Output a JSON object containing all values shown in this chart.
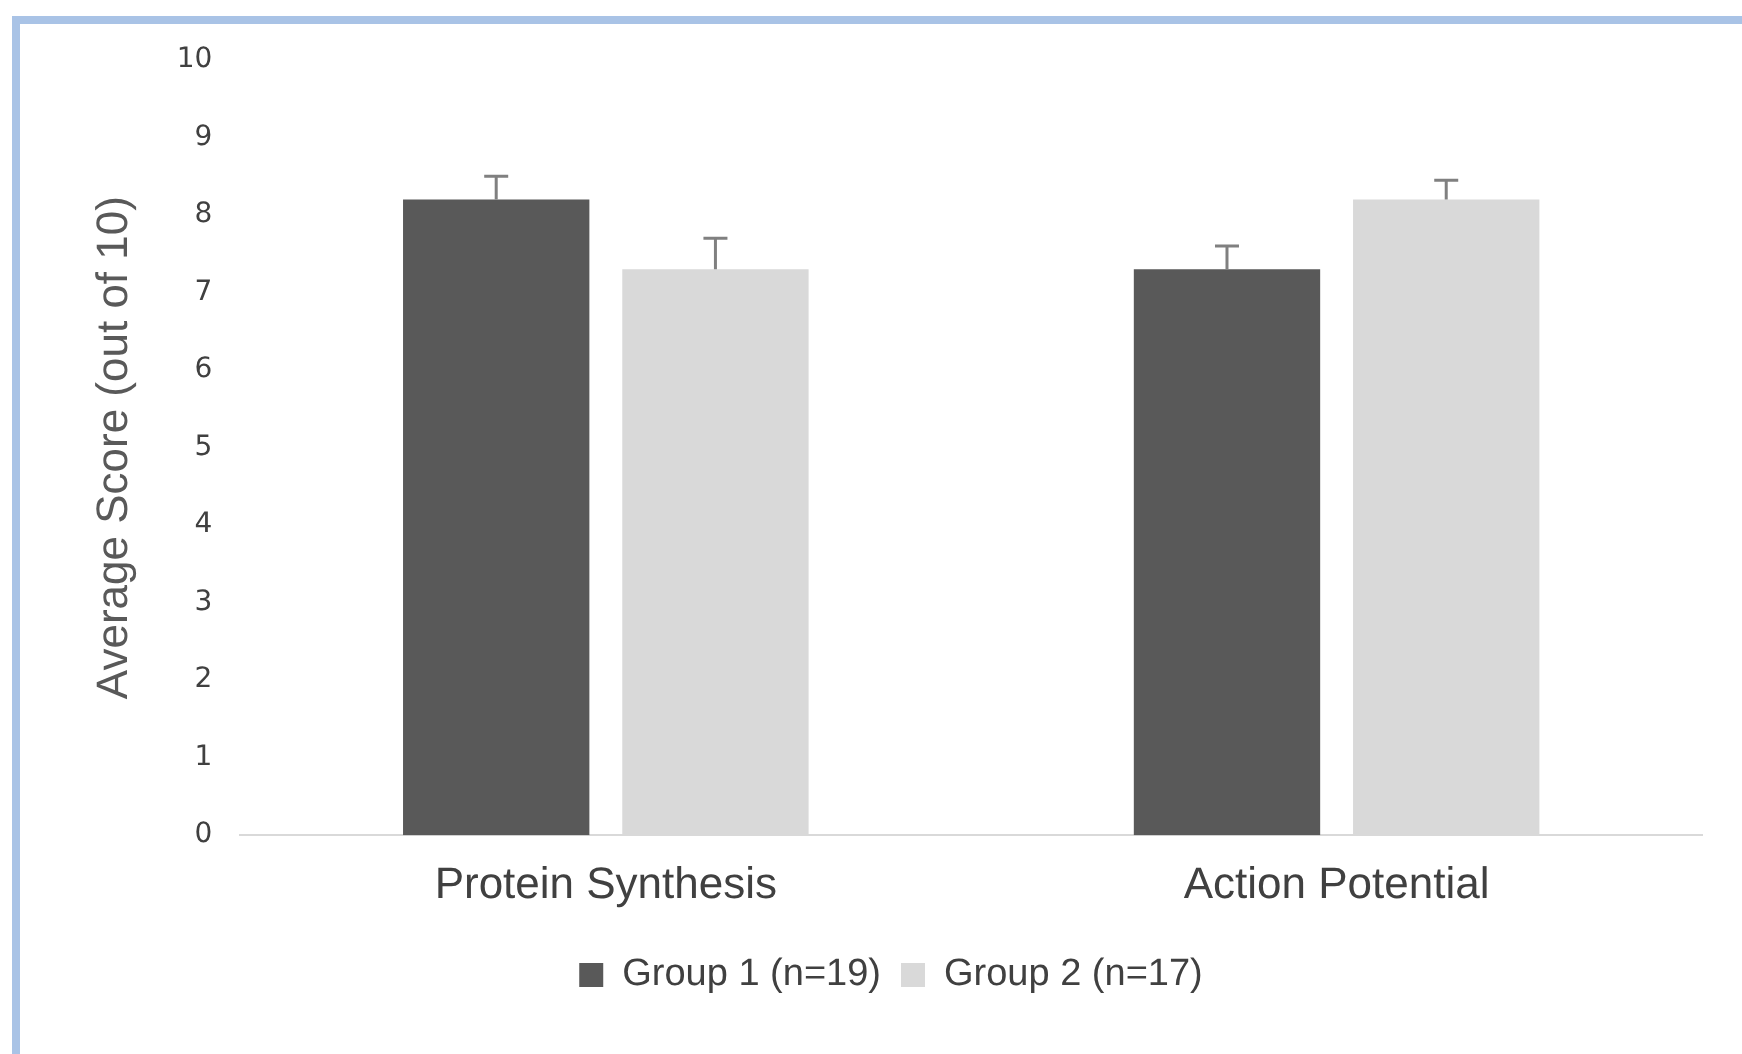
{
  "chart_data": {
    "type": "bar",
    "ylabel": "Average Score (out of 10)",
    "categories": [
      "Protein Synthesis",
      "Action Potential"
    ],
    "series": [
      {
        "name": "Group 1 (n=19)",
        "color": "#595959",
        "values": [
          8.2,
          7.3
        ],
        "errors": [
          0.3,
          0.3
        ]
      },
      {
        "name": "Group 2 (n=17)",
        "color": "#d9d9d9",
        "values": [
          7.3,
          8.2
        ],
        "errors": [
          0.4,
          0.25
        ]
      }
    ],
    "ylim": [
      0,
      10
    ],
    "yticks": [
      0,
      1,
      2,
      3,
      4,
      5,
      6,
      7,
      8,
      9,
      10
    ],
    "grid": false,
    "legend": "bottom"
  }
}
